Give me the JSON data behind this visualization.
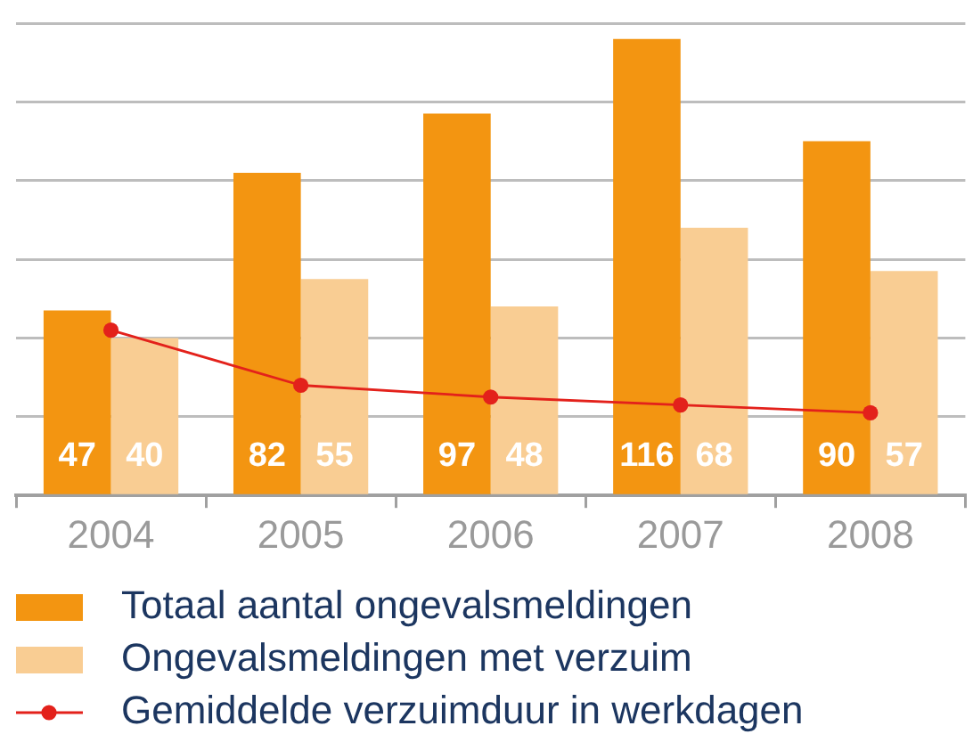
{
  "chart_data": {
    "type": "bar",
    "categories": [
      "2004",
      "2005",
      "2006",
      "2007",
      "2008"
    ],
    "series": [
      {
        "name": "Totaal aantal ongevalsmeldingen",
        "color": "#f39511",
        "values": [
          47,
          82,
          97,
          116,
          90
        ],
        "value_labels": [
          "47",
          "82",
          "97",
          "116",
          "90"
        ]
      },
      {
        "name": "Ongevalsmeldingen met verzuim",
        "color": "#f9cd93",
        "values": [
          40,
          55,
          48,
          68,
          57
        ],
        "value_labels": [
          "40",
          "55",
          "48",
          "68",
          "57"
        ]
      },
      {
        "name": "Gemiddelde verzuimduur in werkdagen",
        "type": "line",
        "color": "#e3211b",
        "values": [
          42,
          28,
          25,
          23,
          21
        ]
      }
    ],
    "ylim": [
      0,
      120
    ],
    "yticks": [
      {
        "value": 0,
        "label": null
      },
      {
        "value": 20,
        "label": null
      },
      {
        "value": 40,
        "label": null
      },
      {
        "value": 60,
        "label": null
      },
      {
        "value": 80,
        "label": null
      },
      {
        "value": 100,
        "label": null
      },
      {
        "value": 120,
        "label": null
      }
    ],
    "grid": "y",
    "legend": "bottom",
    "tick_labels": "x",
    "marker": "circle"
  }
}
